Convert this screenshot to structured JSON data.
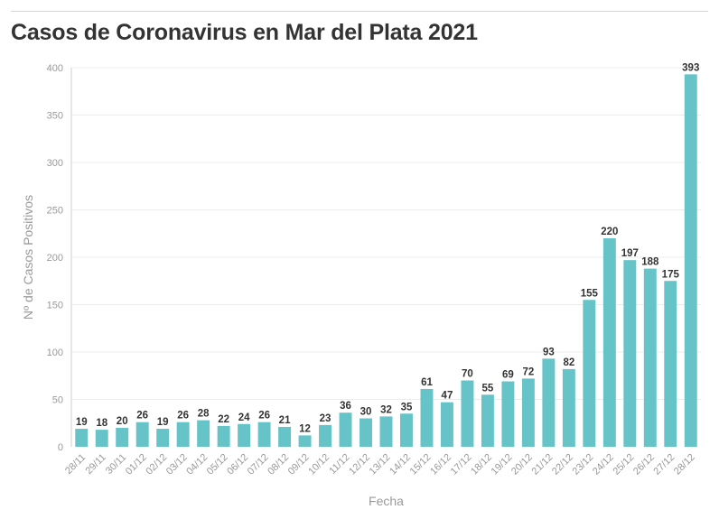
{
  "chart_data": {
    "type": "bar",
    "title": "Casos de Coronavirus en Mar del Plata 2021",
    "xlabel": "Fecha",
    "ylabel": "Nº de Casos Positivos",
    "ylim": [
      0,
      400
    ],
    "yticks": [
      0,
      50,
      100,
      150,
      200,
      250,
      300,
      350,
      400
    ],
    "grid": true,
    "bar_color": "#66c4c8",
    "categories": [
      "28/11",
      "29/11",
      "30/11",
      "01/12",
      "02/12",
      "03/12",
      "04/12",
      "05/12",
      "06/12",
      "07/12",
      "08/12",
      "09/12",
      "10/12",
      "11/12",
      "12/12",
      "13/12",
      "14/12",
      "15/12",
      "16/12",
      "17/12",
      "18/12",
      "19/12",
      "20/12",
      "21/12",
      "22/12",
      "23/12",
      "24/12",
      "25/12",
      "26/12",
      "27/12",
      "28/12"
    ],
    "values": [
      19,
      18,
      20,
      26,
      19,
      26,
      28,
      22,
      24,
      26,
      21,
      12,
      23,
      36,
      30,
      32,
      35,
      61,
      47,
      70,
      55,
      69,
      72,
      93,
      82,
      155,
      220,
      197,
      188,
      175,
      393
    ]
  }
}
